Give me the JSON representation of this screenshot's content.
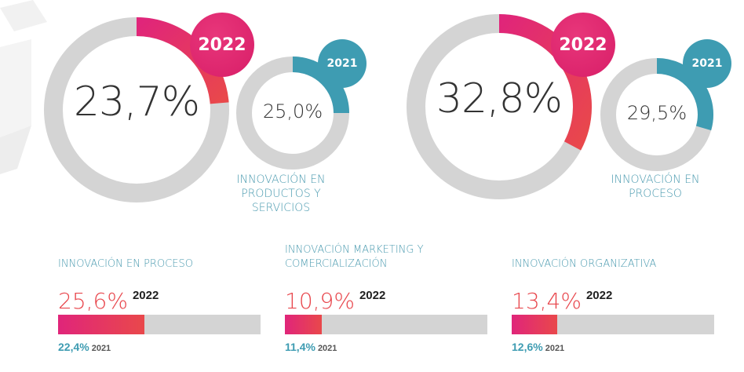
{
  "colors": {
    "track": "#d4d4d4",
    "gradient_start": "#e0257a",
    "gradient_end": "#e9484b",
    "badge_2022": "#d81e68",
    "badge_2021": "#3e9cb2",
    "ring_2021": "#3e9cb2",
    "caption": "#4a9aaf",
    "bar_value": "#e8464c"
  },
  "chart_data": [
    {
      "type": "donut",
      "label": "INNOVACIÓN EN PRODUCTOS Y SERVICIOS",
      "series": [
        {
          "year": "2022",
          "value": 23.7,
          "display": "23,7%"
        },
        {
          "year": "2021",
          "value": 25.0,
          "display": "25,0%"
        }
      ]
    },
    {
      "type": "donut",
      "label": "INNOVACIÓN EN PROCESO",
      "series": [
        {
          "year": "2022",
          "value": 32.8,
          "display": "32,8%"
        },
        {
          "year": "2021",
          "value": 29.5,
          "display": "29,5%"
        }
      ]
    },
    {
      "type": "bar",
      "label": "INNOVACIÓN EN PROCESO",
      "series": [
        {
          "year": "2022",
          "value": 25.6,
          "display": "25,6%"
        },
        {
          "year": "2021",
          "value": 22.4,
          "display": "22,4%"
        }
      ]
    },
    {
      "type": "bar",
      "label": "INNOVACIÓN MARKETING Y COMERCIALIZACIÓN",
      "series": [
        {
          "year": "2022",
          "value": 10.9,
          "display": "10,9%"
        },
        {
          "year": "2021",
          "value": 11.4,
          "display": "11,4%"
        }
      ]
    },
    {
      "type": "bar",
      "label": "INNOVACIÓN ORGANIZATIVA",
      "series": [
        {
          "year": "2022",
          "value": 13.4,
          "display": "13,4%"
        },
        {
          "year": "2021",
          "value": 12.6,
          "display": "12,6%"
        }
      ]
    }
  ]
}
